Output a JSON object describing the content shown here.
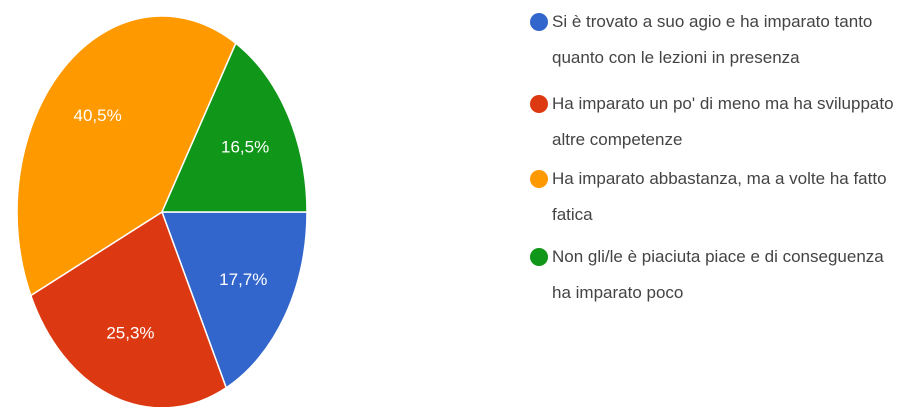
{
  "chart_data": {
    "type": "pie",
    "categories": [
      "Si è trovato a suo agio e ha imparato tanto quanto con le lezioni in presenza",
      "Ha imparato un po' di meno ma ha sviluppato altre competenze",
      "Ha imparato abbastanza, ma a volte ha fatto fatica",
      "Non gli/le è piaciuta piace e di conseguenza ha imparato poco"
    ],
    "values": [
      17.7,
      25.3,
      40.5,
      16.5
    ],
    "value_labels": [
      "17,7%",
      "25,3%",
      "40,5%",
      "16,5%"
    ],
    "colors": [
      "#3366cc",
      "#dc3912",
      "#ff9900",
      "#109618"
    ],
    "legend": "right"
  }
}
